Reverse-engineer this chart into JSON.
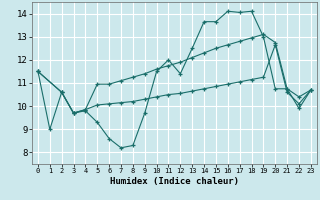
{
  "xlabel": "Humidex (Indice chaleur)",
  "bg_color": "#cce8ec",
  "line_color": "#1a6e6a",
  "grid_color": "#ffffff",
  "xlim": [
    -0.5,
    23.5
  ],
  "ylim": [
    7.5,
    14.5
  ],
  "yticks": [
    8,
    9,
    10,
    11,
    12,
    13,
    14
  ],
  "xticks": [
    0,
    1,
    2,
    3,
    4,
    5,
    6,
    7,
    8,
    9,
    10,
    11,
    12,
    13,
    14,
    15,
    16,
    17,
    18,
    19,
    20,
    21,
    22,
    23
  ],
  "line1_x": [
    0,
    1,
    2,
    3,
    4,
    5,
    6,
    7,
    8,
    9,
    10,
    11,
    12,
    13,
    14,
    15,
    16,
    17,
    18,
    19,
    20,
    21,
    22,
    23
  ],
  "line1_y": [
    11.5,
    9.0,
    10.6,
    9.7,
    9.8,
    9.3,
    8.6,
    8.2,
    8.3,
    9.7,
    11.5,
    12.0,
    11.4,
    12.5,
    13.65,
    13.65,
    14.1,
    14.05,
    14.1,
    13.0,
    10.75,
    10.75,
    9.9,
    10.7
  ],
  "line2_x": [
    0,
    2,
    3,
    4,
    5,
    6,
    7,
    8,
    9,
    10,
    11,
    12,
    13,
    14,
    15,
    16,
    17,
    18,
    19,
    20,
    21,
    22,
    23
  ],
  "line2_y": [
    11.5,
    10.6,
    9.7,
    9.85,
    10.95,
    10.95,
    11.1,
    11.25,
    11.4,
    11.6,
    11.75,
    11.9,
    12.1,
    12.3,
    12.5,
    12.65,
    12.8,
    12.95,
    13.1,
    12.75,
    10.75,
    10.4,
    10.7
  ],
  "line3_x": [
    0,
    2,
    3,
    4,
    5,
    6,
    7,
    8,
    9,
    10,
    11,
    12,
    13,
    14,
    15,
    16,
    17,
    18,
    19,
    20,
    21,
    22,
    23
  ],
  "line3_y": [
    11.5,
    10.6,
    9.7,
    9.85,
    10.05,
    10.1,
    10.15,
    10.2,
    10.3,
    10.4,
    10.5,
    10.55,
    10.65,
    10.75,
    10.85,
    10.95,
    11.05,
    11.15,
    11.25,
    12.65,
    10.6,
    10.1,
    10.7
  ]
}
